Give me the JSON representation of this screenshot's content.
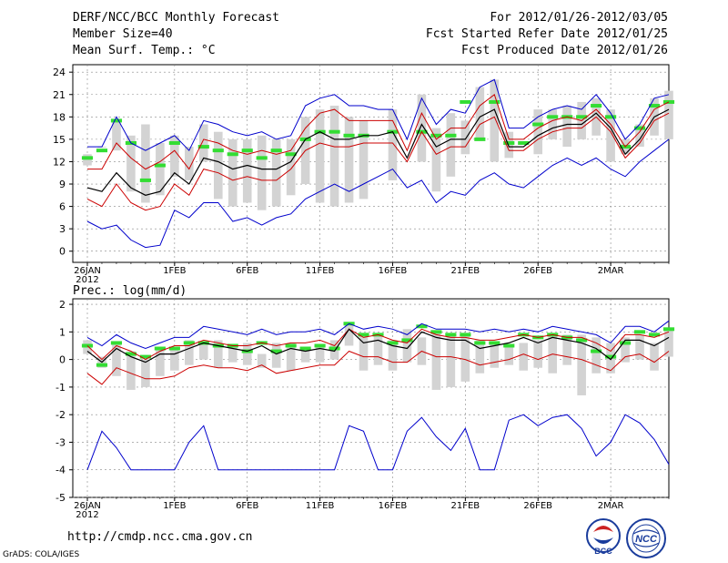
{
  "header": {
    "line1_left": "DERF/NCC/BCC Monthly Forecast",
    "line2_left": "Member Size=40",
    "line3_left": "Mean Surf. Temp.: °C",
    "line1_right": "For 2012/01/26-2012/03/05",
    "line2_right": "Fcst Started Refer Date 2012/01/25",
    "line3_right": "Fcst Produced Date 2012/01/26"
  },
  "footer": {
    "url": "http://cmdp.ncc.cma.gov.cn",
    "credit": "GrADS: COLA/IGES",
    "logo1_text": "BCC",
    "logo2_text": "NCC"
  },
  "colors": {
    "envelope": "#0000cc",
    "spread": "#cc0000",
    "mean": "#000000",
    "bar": "#d3d3d3",
    "marker": "#33dd33",
    "grid": "#888888"
  },
  "chart_data": [
    {
      "type": "line",
      "title": "Mean Surf. Temp.: °C",
      "ylim": [
        -1.5,
        25
      ],
      "yticks": [
        0,
        3,
        6,
        9,
        12,
        15,
        18,
        21,
        24
      ],
      "x_ticks": [
        {
          "day": 0,
          "label": "26JAN",
          "sub": "2012"
        },
        {
          "day": 6,
          "label": "1FEB"
        },
        {
          "day": 11,
          "label": "6FEB"
        },
        {
          "day": 16,
          "label": "11FEB"
        },
        {
          "day": 21,
          "label": "16FEB"
        },
        {
          "day": 26,
          "label": "21FEB"
        },
        {
          "day": 31,
          "label": "26FEB"
        },
        {
          "day": 36,
          "label": "2MAR"
        }
      ],
      "days": 40,
      "max": [
        14.0,
        14.0,
        18.0,
        14.5,
        13.5,
        14.5,
        15.5,
        13.5,
        17.5,
        17.0,
        16.0,
        15.5,
        16.0,
        15.0,
        15.5,
        19.5,
        20.5,
        21.0,
        19.5,
        19.5,
        19.0,
        19.0,
        15.0,
        20.5,
        17.0,
        19.0,
        18.5,
        22.0,
        23.0,
        16.5,
        16.5,
        18.0,
        19.0,
        19.5,
        19.0,
        21.0,
        18.5,
        15.0,
        17.0,
        20.5,
        21.0
      ],
      "upper": [
        11.0,
        11.0,
        14.5,
        12.5,
        11.0,
        12.0,
        13.5,
        11.0,
        15.0,
        14.5,
        13.5,
        13.0,
        13.5,
        13.0,
        13.5,
        16.5,
        18.5,
        19.0,
        17.5,
        17.5,
        17.5,
        17.5,
        13.5,
        18.5,
        15.0,
        16.5,
        16.5,
        19.5,
        21.0,
        15.0,
        15.0,
        16.5,
        17.5,
        18.0,
        17.5,
        19.0,
        17.0,
        14.0,
        16.0,
        19.0,
        20.0
      ],
      "mean": [
        8.5,
        8.0,
        10.5,
        8.5,
        7.5,
        8.0,
        10.5,
        9.0,
        12.5,
        12.0,
        11.0,
        11.5,
        11.0,
        11.0,
        12.0,
        15.0,
        16.0,
        15.0,
        15.0,
        15.5,
        15.5,
        16.0,
        12.5,
        17.0,
        14.0,
        15.0,
        15.0,
        18.0,
        19.0,
        14.0,
        14.0,
        15.5,
        16.5,
        17.0,
        17.0,
        18.5,
        16.5,
        13.0,
        15.0,
        18.0,
        19.0
      ],
      "lower": [
        7.0,
        6.0,
        9.0,
        6.5,
        5.5,
        6.0,
        9.0,
        7.5,
        11.0,
        10.5,
        9.5,
        10.0,
        9.5,
        9.5,
        11.0,
        13.5,
        14.5,
        14.0,
        14.0,
        14.5,
        14.5,
        14.5,
        12.0,
        16.0,
        13.0,
        14.0,
        14.0,
        17.0,
        18.0,
        13.5,
        13.5,
        15.0,
        16.0,
        16.5,
        16.5,
        18.0,
        16.0,
        12.5,
        14.5,
        17.5,
        18.5
      ],
      "min": [
        4.0,
        3.0,
        3.5,
        1.5,
        0.5,
        0.8,
        5.5,
        4.5,
        6.5,
        6.5,
        4.0,
        4.5,
        3.5,
        4.5,
        5.0,
        7.0,
        8.0,
        9.0,
        8.0,
        9.0,
        10.0,
        11.0,
        8.5,
        9.5,
        6.5,
        8.0,
        7.5,
        9.5,
        10.5,
        9.0,
        8.5,
        10.0,
        11.5,
        12.5,
        11.5,
        12.5,
        11.0,
        10.0,
        12.0,
        13.5,
        15.0
      ],
      "bars": [
        [
          11.5,
          13
        ],
        [
          14,
          14
        ],
        [
          13.5,
          17.5
        ],
        [
          8,
          15.5
        ],
        [
          6.5,
          17
        ],
        [
          7.5,
          14.5
        ],
        [
          10,
          15.5
        ],
        [
          9.5,
          14
        ],
        [
          12,
          17
        ],
        [
          7,
          16
        ],
        [
          6,
          15
        ],
        [
          6.5,
          15
        ],
        [
          5.5,
          15.5
        ],
        [
          6,
          15
        ],
        [
          7.5,
          15
        ],
        [
          9,
          18
        ],
        [
          6.5,
          19
        ],
        [
          6,
          19.5
        ],
        [
          6.5,
          18
        ],
        [
          7,
          17.5
        ],
        [
          null,
          null
        ],
        [
          9.5,
          19
        ],
        [
          null,
          null
        ],
        [
          12,
          21
        ],
        [
          8,
          16.5
        ],
        [
          10,
          18.5
        ],
        [
          13,
          17.5
        ],
        [
          15,
          22
        ],
        [
          12,
          23
        ],
        [
          12.5,
          16
        ],
        [
          null,
          null
        ],
        [
          13,
          19
        ],
        [
          15,
          19
        ],
        [
          14,
          19.5
        ],
        [
          15,
          20
        ],
        [
          15.5,
          20.5
        ],
        [
          12,
          19
        ],
        [
          13,
          15
        ],
        [
          14,
          17
        ],
        [
          15.5,
          20.5
        ],
        [
          15,
          21.5
        ]
      ],
      "markers": [
        12.5,
        13.5,
        17.5,
        14.5,
        9.5,
        11.5,
        14.5,
        null,
        14.0,
        13.5,
        13.0,
        13.5,
        12.5,
        13.5,
        13.0,
        15.0,
        16.0,
        16.0,
        15.5,
        15.5,
        null,
        16.0,
        null,
        16.0,
        15.5,
        15.5,
        20.0,
        15.0,
        20.0,
        14.5,
        14.5,
        17.0,
        18.0,
        18.0,
        18.0,
        19.5,
        18.0,
        14.0,
        16.5,
        19.5,
        20.0
      ]
    },
    {
      "type": "line",
      "title": "Prec.: log(mm/d)",
      "ylim": [
        -5,
        2.2
      ],
      "yticks": [
        -5,
        -4,
        -3,
        -2,
        -1,
        0,
        1,
        2
      ],
      "x_ticks": [
        {
          "day": 0,
          "label": "26JAN",
          "sub": "2012"
        },
        {
          "day": 6,
          "label": "1FEB"
        },
        {
          "day": 11,
          "label": "6FEB"
        },
        {
          "day": 16,
          "label": "11FEB"
        },
        {
          "day": 21,
          "label": "16FEB"
        },
        {
          "day": 26,
          "label": "21FEB"
        },
        {
          "day": 31,
          "label": "26FEB"
        },
        {
          "day": 36,
          "label": "2MAR"
        }
      ],
      "days": 40,
      "max": [
        0.8,
        0.5,
        0.9,
        0.6,
        0.4,
        0.6,
        0.8,
        0.8,
        1.2,
        1.1,
        1.0,
        0.9,
        1.1,
        0.9,
        1.0,
        1.0,
        1.1,
        0.9,
        1.3,
        1.1,
        1.2,
        1.1,
        0.9,
        1.3,
        1.1,
        1.1,
        1.1,
        1.0,
        1.1,
        1.0,
        1.1,
        1.0,
        1.2,
        1.1,
        1.0,
        0.9,
        0.6,
        1.2,
        1.2,
        1.0,
        1.4
      ],
      "upper": [
        0.5,
        0.0,
        0.5,
        0.3,
        0.0,
        0.3,
        0.5,
        0.5,
        0.7,
        0.6,
        0.5,
        0.5,
        0.6,
        0.5,
        0.6,
        0.6,
        0.7,
        0.5,
        1.1,
        0.8,
        0.9,
        0.7,
        0.6,
        1.1,
        0.9,
        0.8,
        0.8,
        0.7,
        0.7,
        0.8,
        0.9,
        0.8,
        0.9,
        0.8,
        0.8,
        0.6,
        0.3,
        0.9,
        0.9,
        0.8,
        1.0
      ],
      "mean": [
        0.3,
        -0.1,
        0.4,
        0.1,
        -0.1,
        0.2,
        0.2,
        0.4,
        0.6,
        0.5,
        0.4,
        0.3,
        0.5,
        0.2,
        0.4,
        0.3,
        0.4,
        0.3,
        1.1,
        0.6,
        0.7,
        0.5,
        0.4,
        1.0,
        0.8,
        0.7,
        0.7,
        0.4,
        0.5,
        0.6,
        0.8,
        0.6,
        0.8,
        0.7,
        0.6,
        0.4,
        0.0,
        0.7,
        0.7,
        0.5,
        0.8
      ],
      "lower": [
        -0.5,
        -0.9,
        -0.3,
        -0.5,
        -0.7,
        -0.7,
        -0.6,
        -0.3,
        -0.2,
        -0.3,
        -0.3,
        -0.4,
        -0.2,
        -0.5,
        -0.4,
        -0.3,
        -0.2,
        -0.2,
        0.3,
        0.1,
        0.1,
        -0.1,
        -0.1,
        0.3,
        0.1,
        0.1,
        0.0,
        -0.2,
        -0.1,
        0.0,
        0.2,
        0.0,
        0.2,
        0.1,
        0.0,
        -0.2,
        -0.4,
        0.1,
        0.2,
        -0.1,
        0.3
      ],
      "min": [
        -4.0,
        -2.6,
        -3.2,
        -4.0,
        -4.0,
        -4.0,
        -4.0,
        -3.0,
        -2.4,
        -4.0,
        -4.0,
        -4.0,
        -4.0,
        -4.0,
        -4.0,
        -4.0,
        -4.0,
        -4.0,
        -2.4,
        -2.6,
        -4.0,
        -4.0,
        -2.6,
        -2.1,
        -2.8,
        -3.3,
        -2.5,
        -4.0,
        -4.0,
        -2.2,
        -2.0,
        -2.4,
        -2.1,
        -2.0,
        -2.5,
        -3.5,
        -3.0,
        -2.0,
        -2.3,
        -2.9,
        -3.8
      ],
      "bars": [
        [
          0.2,
          0.7
        ],
        [
          -0.3,
          0.1
        ],
        [
          -0.6,
          0.6
        ],
        [
          -1.1,
          0.3
        ],
        [
          -1.0,
          0.0
        ],
        [
          -0.6,
          0.4
        ],
        [
          -0.4,
          0.4
        ],
        [
          -0.2,
          0.7
        ],
        [
          0.0,
          0.6
        ],
        [
          -0.3,
          0.7
        ],
        [
          -0.1,
          0.5
        ],
        [
          -0.2,
          0.6
        ],
        [
          -0.3,
          0.2
        ],
        [
          -0.3,
          0.6
        ],
        [
          -0.4,
          0.6
        ],
        [
          -0.1,
          0.4
        ],
        [
          -0.1,
          0.5
        ],
        [
          0.0,
          0.7
        ],
        [
          0.5,
          1.3
        ],
        [
          -0.4,
          0.9
        ],
        [
          -0.2,
          0.9
        ],
        [
          -0.4,
          0.7
        ],
        [
          -0.1,
          1.1
        ],
        [
          -0.2,
          0.8
        ],
        [
          -1.1,
          1.0
        ],
        [
          -1.0,
          0.9
        ],
        [
          -0.8,
          0.9
        ],
        [
          -0.5,
          0.7
        ],
        [
          -0.3,
          0.6
        ],
        [
          -0.2,
          0.5
        ],
        [
          -0.4,
          0.6
        ],
        [
          -0.3,
          0.7
        ],
        [
          -0.5,
          0.9
        ],
        [
          -0.2,
          0.9
        ],
        [
          -1.3,
          0.9
        ],
        [
          -0.5,
          0.8
        ],
        [
          -0.5,
          0.6
        ],
        [
          -0.1,
          0.8
        ],
        [
          0.0,
          0.9
        ],
        [
          -0.4,
          0.6
        ],
        [
          0.1,
          1.1
        ]
      ],
      "markers": [
        0.5,
        -0.2,
        0.6,
        0.2,
        0.1,
        0.4,
        0.4,
        0.6,
        0.6,
        0.5,
        0.5,
        0.3,
        0.6,
        0.3,
        0.5,
        0.4,
        0.5,
        0.4,
        1.3,
        0.9,
        0.9,
        0.6,
        0.7,
        1.2,
        1.0,
        0.9,
        0.9,
        0.6,
        0.6,
        0.5,
        0.9,
        0.8,
        0.9,
        0.8,
        0.7,
        0.3,
        0.1,
        0.6,
        1.0,
        0.9,
        1.1
      ]
    }
  ]
}
